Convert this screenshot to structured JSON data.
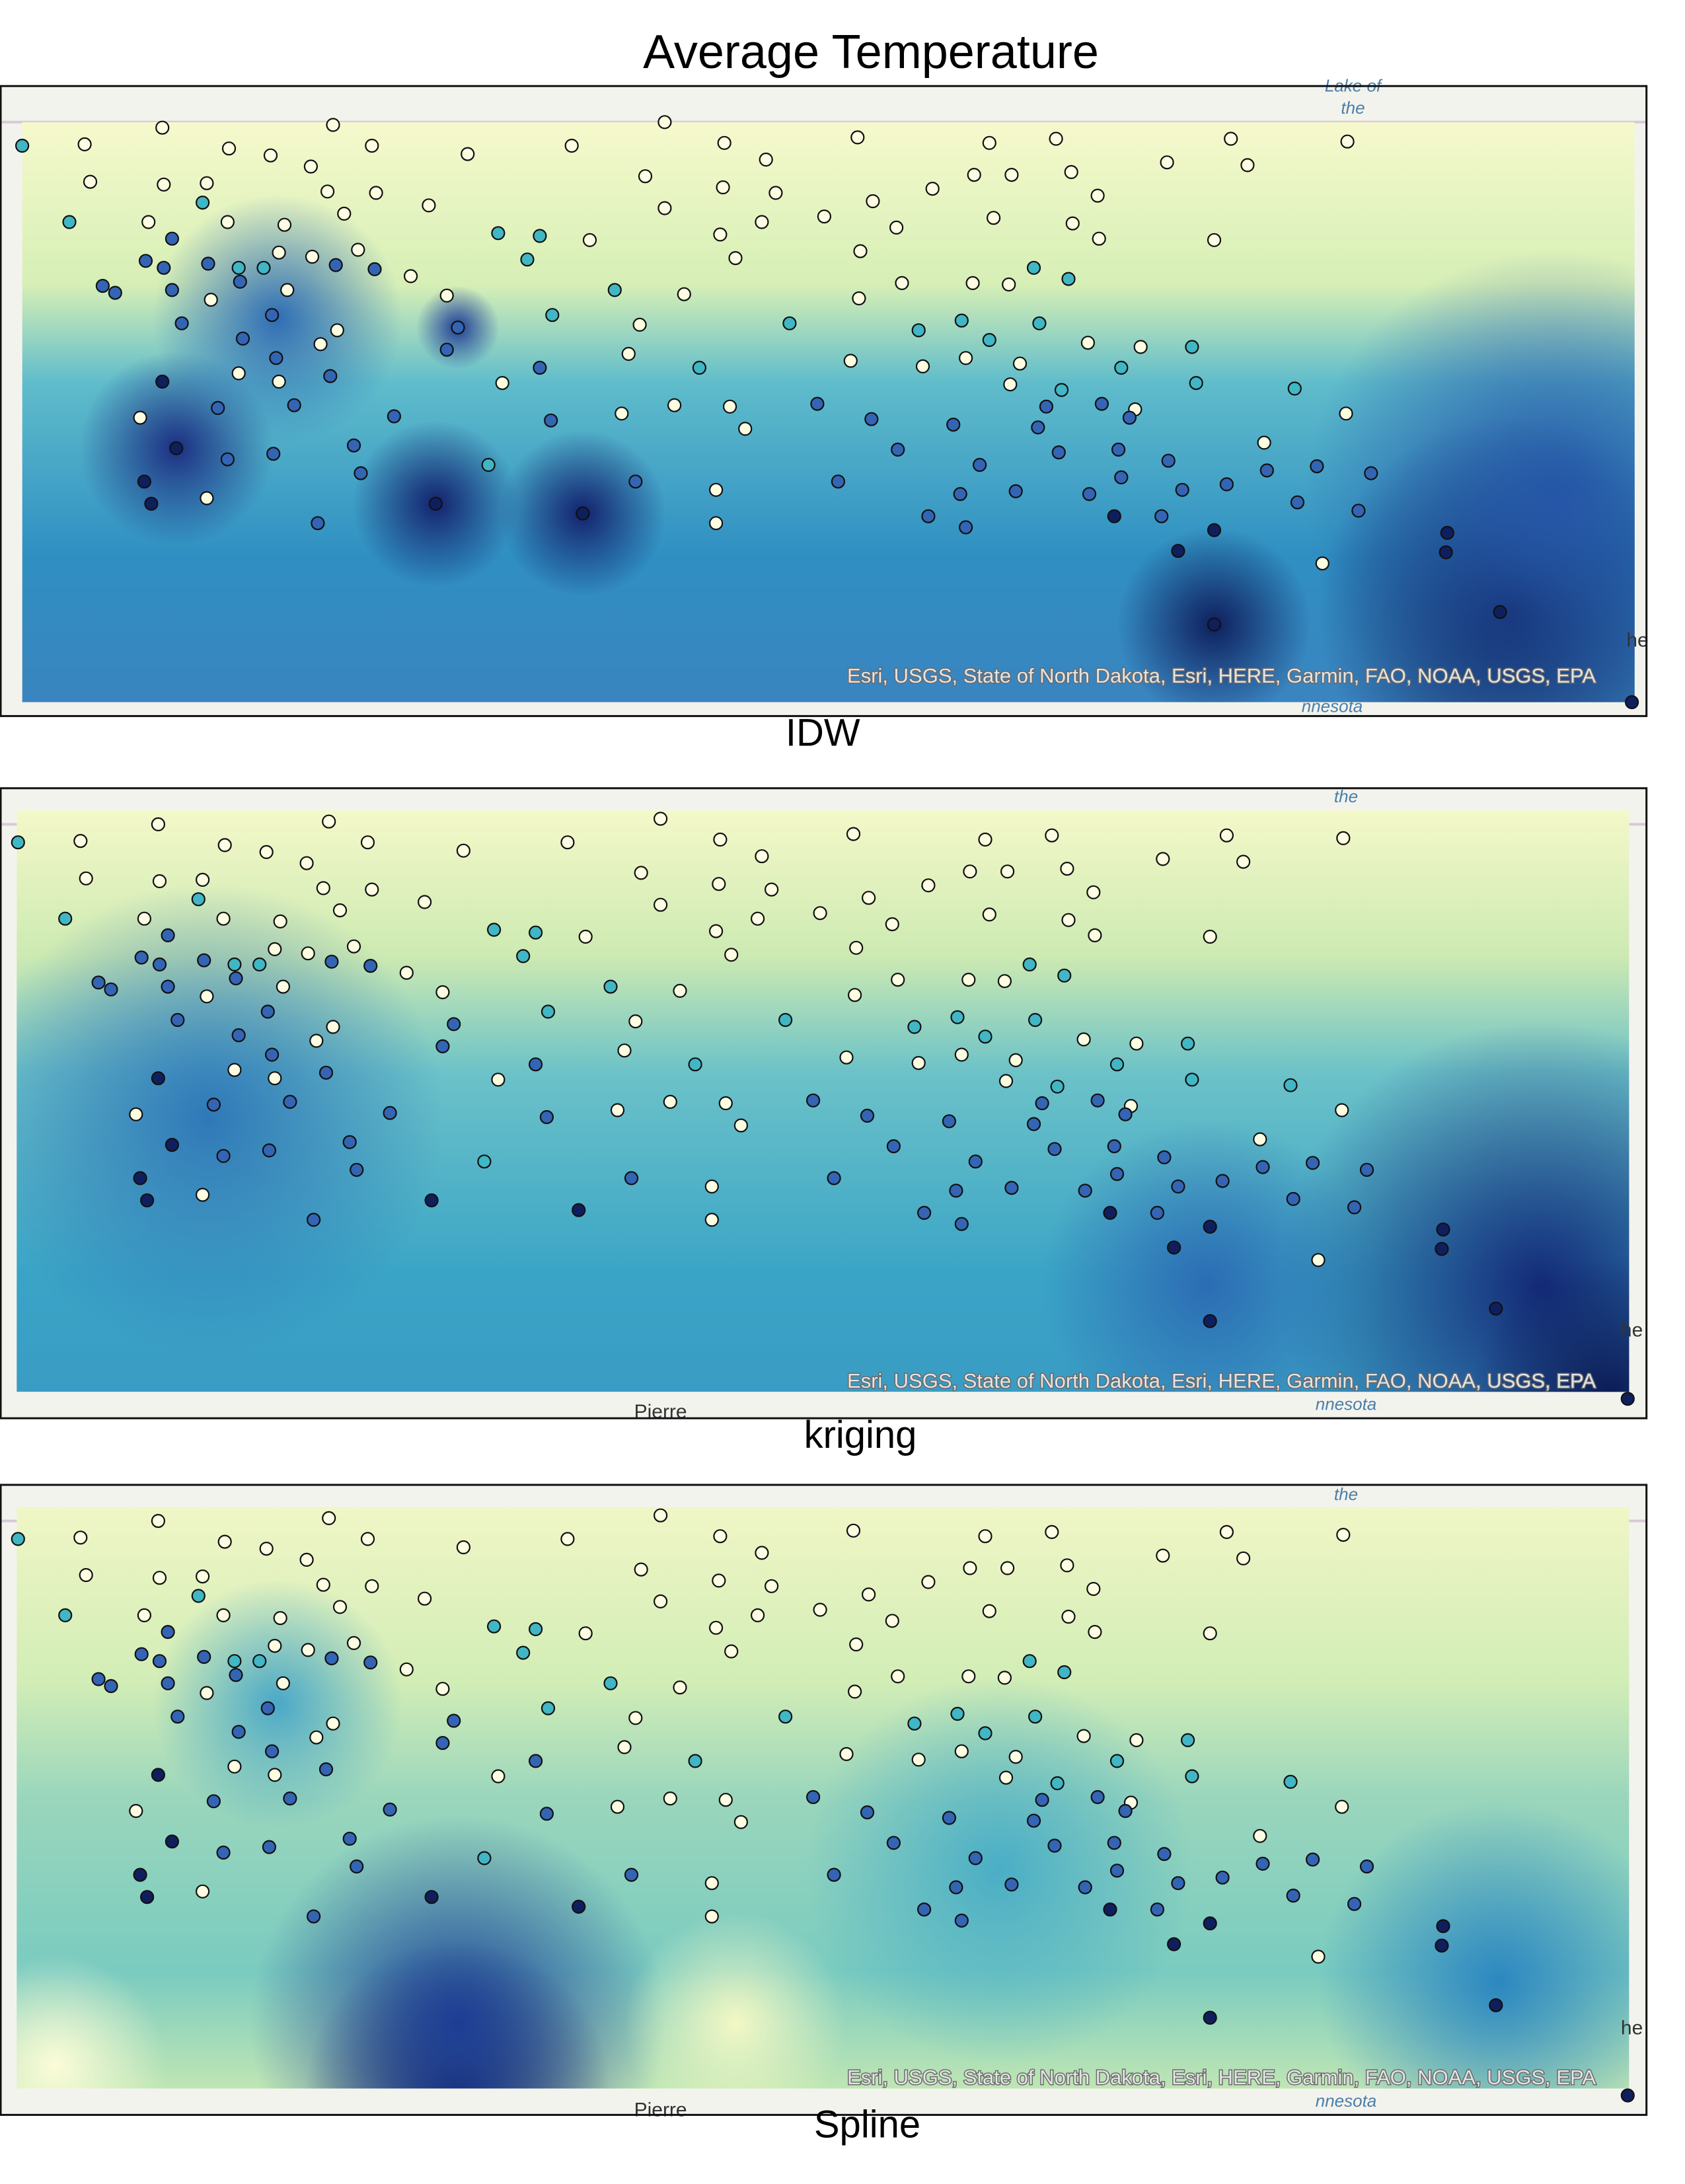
{
  "title": "Average Temperature",
  "attribution": "Esri, USGS, State of North Dakota, Esri, HERE, Garmin, FAO, NOAA, USGS, EPA",
  "panels": [
    {
      "label": "IDW",
      "places": [
        "Lake of",
        "the",
        "he",
        "nnesota"
      ]
    },
    {
      "label": "kriging",
      "places": [
        "the",
        "he",
        "Pierre",
        "nnesota"
      ]
    },
    {
      "label": "Spline",
      "places": [
        "the",
        "he",
        "Pierre",
        "nnesota"
      ]
    }
  ]
}
